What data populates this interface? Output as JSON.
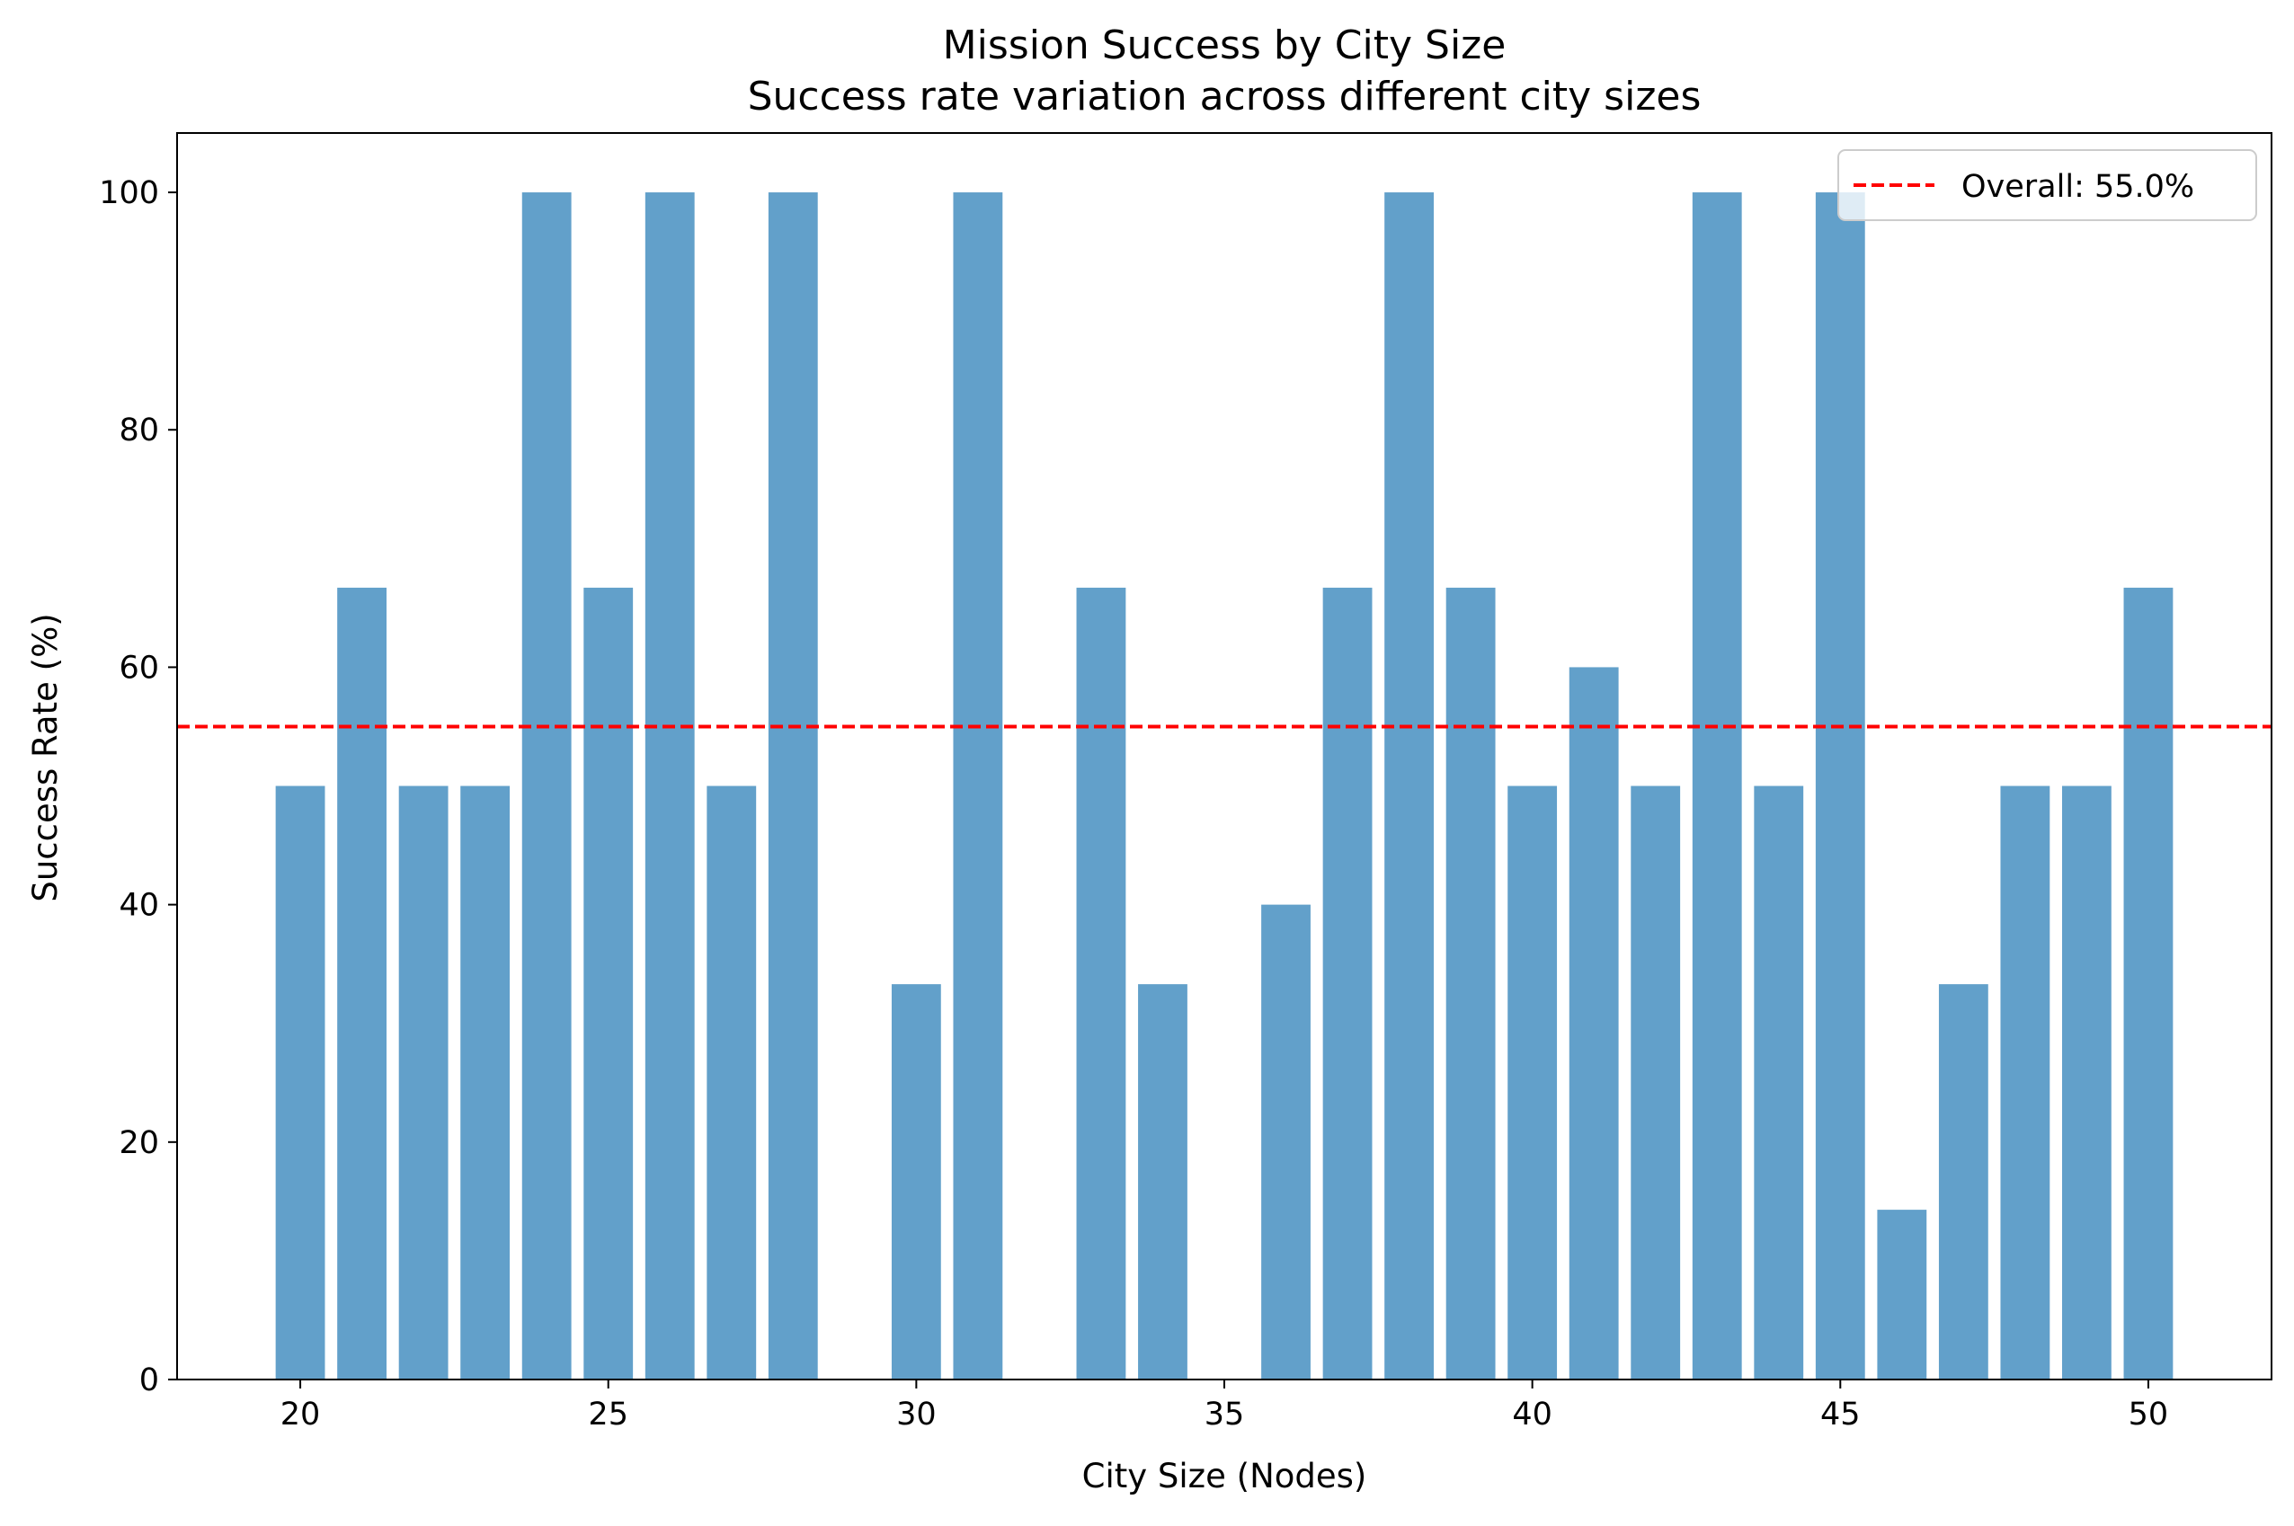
{
  "chart_data": {
    "type": "bar",
    "title": "Mission Success by City Size",
    "subtitle": "Success rate variation across different city sizes",
    "xlabel": "City Size (Nodes)",
    "ylabel": "Success Rate (%)",
    "x": [
      20,
      21,
      22,
      23,
      24,
      25,
      26,
      27,
      28,
      30,
      31,
      33,
      34,
      35,
      36,
      37,
      38,
      39,
      40,
      41,
      42,
      43,
      44,
      45,
      46,
      47,
      48,
      49,
      50
    ],
    "values": [
      50,
      66.7,
      50,
      50,
      100,
      66.7,
      100,
      50,
      100,
      33.3,
      100,
      66.7,
      33.3,
      0,
      40,
      66.7,
      100,
      66.7,
      50,
      60,
      50,
      100,
      50,
      100,
      14.3,
      33.3,
      50,
      50,
      66.7
    ],
    "xlim": [
      18,
      52
    ],
    "ylim": [
      0,
      105
    ],
    "xticks": [
      20,
      25,
      30,
      35,
      40,
      45,
      50
    ],
    "yticks": [
      0,
      20,
      40,
      60,
      80,
      100
    ],
    "bar_color": "#1f77b4",
    "bar_opacity": 0.7,
    "reference_line": {
      "value": 55,
      "label": "Overall: 55.0%",
      "color": "#ff0000",
      "style": "dashed"
    },
    "legend": {
      "position": "top-right"
    },
    "grid": false
  }
}
